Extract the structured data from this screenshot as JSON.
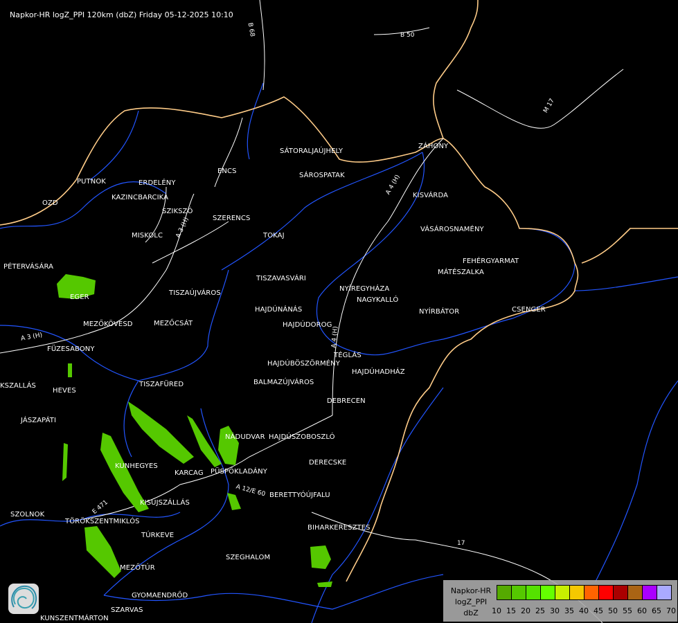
{
  "title": "Napkor-HR logZ_PPI 120km (dbZ) Friday 05-12-2025 10:10",
  "cities": [
    "SÁTORALJAÚJHELY",
    "SÁROSPATAK",
    "ZÁHONY",
    "PUTNOK",
    "ERDELÉNY",
    "ENCS",
    "KAZINCBARCIKA",
    "OZD",
    "SZIKSZÓ",
    "SZERENCS",
    "KISVÁRDA",
    "MISKOLC",
    "TOKAJ",
    "VÁSÁROSNAMÉNY",
    "PÉTERVÁSÁRA",
    "FEHÉRGYARMAT",
    "MÁTÉSZALKA",
    "TISZAVASVÁRI",
    "NYÍREGYHÁZA",
    "EGER",
    "TISZAÚJVÁROS",
    "NAGYKALLÓ",
    "HAJDÚNÁNÁS",
    "NYÍRBÁTOR",
    "CSENGER",
    "MEZŐKÖVESD",
    "MEZŐCSÁT",
    "HAJDÚDOROG",
    "FÜZESABONY",
    "TÉGLÁS",
    "HAJDÚBÖSZÖRMÉNY",
    "HAJDÚHADHÁZ",
    "BALMAZÚJVÁROS",
    "KSZALLÁS",
    "TISZAFÜRED",
    "HEVES",
    "DEBRECEN",
    "JÁSZAPÁTI",
    "NÁDUDVAR",
    "HAJDÚSZOBOSZLÓ",
    "DERECSKE",
    "KUNHEGYES",
    "KARCAG",
    "PÜSPÖKLADÁNY",
    "BERETTYÓÚJFALU",
    "KISÚJSZÁLLÁS",
    "SZOLNOK",
    "TÖRÖKSZENTMIKLÓS",
    "BIHARKERESZTES",
    "TÚRKEVE",
    "SZEGHALOM",
    "MEZŐTÚR",
    "GYOMAENDRŐD",
    "SZARVAS",
    "KUNSZENTMÁRTON"
  ],
  "roads": [
    "B 68",
    "B 50",
    "M 17",
    "A 4 (H)",
    "A 3 (H)",
    "A 3 (H)",
    "A 4 (H)",
    "A 12/E 60",
    "E 471",
    "17"
  ],
  "legend": {
    "lines": [
      "Napkor-HR",
      "logZ_PPI",
      "dbZ"
    ],
    "ticks": [
      "10",
      "15",
      "20",
      "25",
      "30",
      "35",
      "40",
      "45",
      "50",
      "55",
      "60",
      "65",
      "70"
    ],
    "colors": [
      "#55aa00",
      "#55c800",
      "#55e100",
      "#64ff00",
      "#c8f000",
      "#f5c800",
      "#ff6400",
      "#ff0000",
      "#aa0000",
      "#aa6414",
      "#aa00ff",
      "#aaaaff"
    ]
  },
  "colors": {
    "border": "#ffcc88",
    "river": "#2255ff",
    "road": "#ffffff",
    "echo": "#55c800"
  }
}
